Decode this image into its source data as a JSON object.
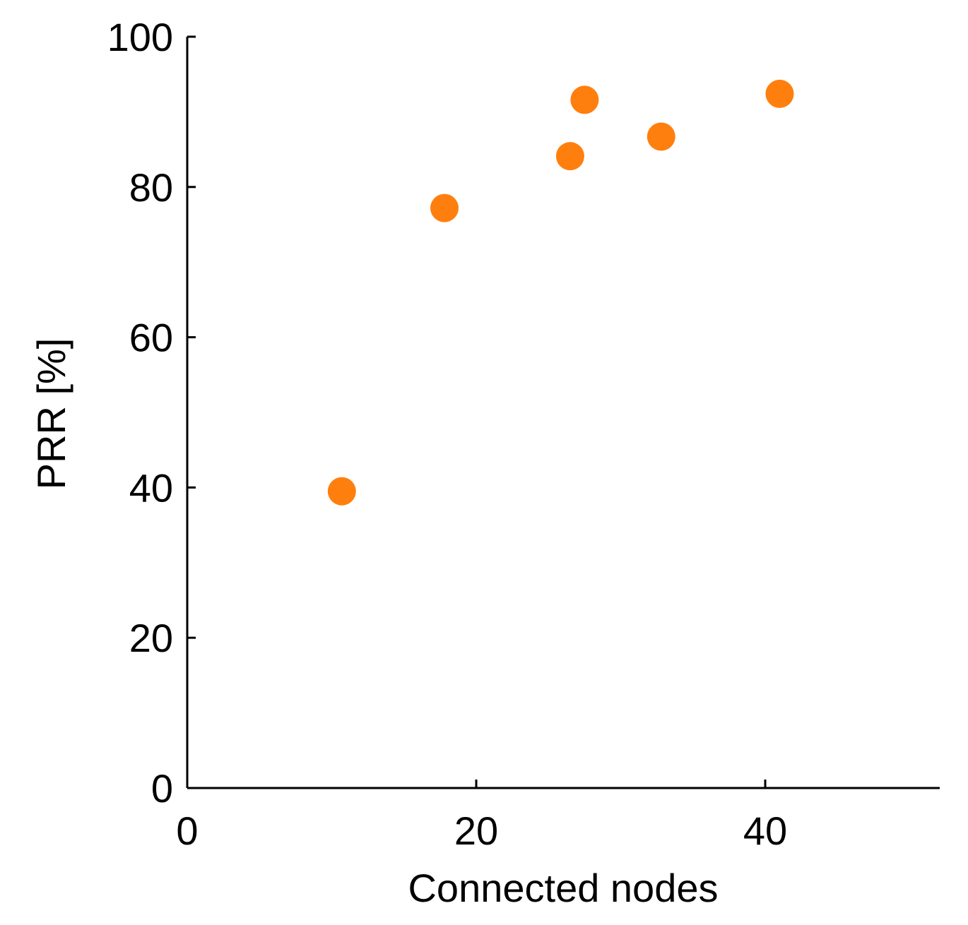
{
  "chart_data": {
    "type": "scatter",
    "title": "",
    "xlabel": "Connected nodes",
    "ylabel": "PRR [%]",
    "xlim": [
      0,
      52
    ],
    "ylim": [
      0,
      100
    ],
    "x_ticks": [
      0,
      20,
      40
    ],
    "y_ticks": [
      0,
      20,
      40,
      60,
      80,
      100
    ],
    "grid": false,
    "marker_color": "#ff7f0e",
    "series": [
      {
        "x": [
          10.7,
          17.8,
          26.5,
          27.5,
          32.8,
          41.0
        ],
        "y": [
          39.5,
          77.2,
          84.1,
          91.6,
          86.7,
          92.4
        ]
      }
    ]
  }
}
